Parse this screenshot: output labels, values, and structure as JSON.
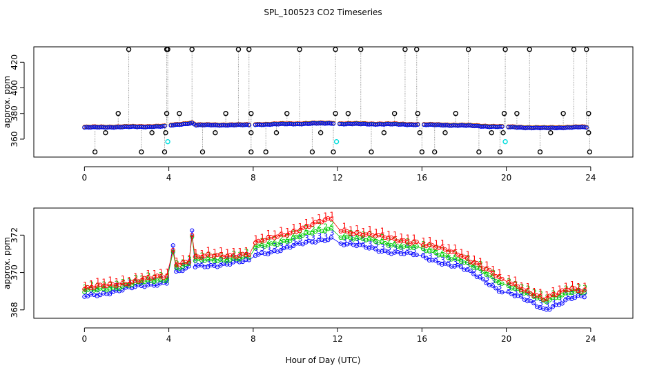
{
  "title": "SPL_100523  CO2 Timeseries",
  "xlabel": "Hour of Day (UTC)",
  "colors": {
    "series_1": "#ff0000",
    "series_2": "#00cc00",
    "series_3": "#0000ff",
    "outlier": "#000000",
    "cyan": "#00dddd",
    "spike": "#888888"
  },
  "chart_data": [
    {
      "type": "scatter",
      "panel": "top",
      "ylabel": "approx. ppm",
      "xlim": [
        -2.4,
        26.0
      ],
      "ylim": [
        346,
        432
      ],
      "xticks": [
        0,
        4,
        8,
        12,
        16,
        20,
        24
      ],
      "yticks": [
        360,
        380,
        400,
        420
      ],
      "baseline_keypoints": [
        [
          0,
          369
        ],
        [
          3.9,
          369.8
        ],
        [
          4.1,
          370.5
        ],
        [
          5.1,
          372.5
        ],
        [
          5.3,
          370.8
        ],
        [
          7.9,
          370.9
        ],
        [
          8.0,
          371.2
        ],
        [
          11.8,
          372.3
        ],
        [
          12.0,
          371.8
        ],
        [
          14.0,
          371.6
        ],
        [
          15.8,
          371.2
        ],
        [
          16.0,
          371.1
        ],
        [
          17.8,
          370.6
        ],
        [
          19.8,
          369.4
        ],
        [
          20.2,
          369.2
        ],
        [
          21.8,
          368.5
        ],
        [
          23.5,
          369.2
        ],
        [
          23.8,
          369.0
        ]
      ],
      "outliers_high_430": [
        2.1,
        3.9,
        3.95,
        5.1,
        7.3,
        7.8,
        10.2,
        11.9,
        13.1,
        15.2,
        15.75,
        18.2,
        19.95,
        21.1,
        23.2,
        23.8
      ],
      "outliers_380": [
        1.6,
        3.9,
        4.5,
        6.7,
        7.9,
        9.6,
        11.9,
        12.5,
        14.7,
        15.8,
        17.6,
        19.9,
        20.5,
        22.7,
        23.9
      ],
      "outliers_365": [
        1.0,
        3.2,
        3.85,
        6.2,
        7.9,
        9.1,
        11.2,
        14.2,
        15.9,
        17.1,
        19.3,
        19.85,
        22.1,
        23.9
      ],
      "outliers_350": [
        0.5,
        2.7,
        3.8,
        5.6,
        7.9,
        8.6,
        10.8,
        11.8,
        13.6,
        16.0,
        16.6,
        18.7,
        19.7,
        21.6,
        23.95
      ],
      "cyan_points": [
        [
          3.95,
          358
        ],
        [
          11.95,
          358
        ],
        [
          19.95,
          358
        ]
      ]
    },
    {
      "type": "scatter",
      "panel": "bottom",
      "ylabel": "approx. ppm",
      "xlim": [
        -2.4,
        26.0
      ],
      "ylim": [
        367.55,
        373.45
      ],
      "xticks": [
        0,
        4,
        8,
        12,
        16,
        20,
        24
      ],
      "yticks": [
        368,
        370,
        372
      ],
      "series": [
        {
          "name": "1",
          "color": "#ff0000",
          "offset": 0.28,
          "spike_peak": 372.0,
          "keypoints": [
            [
              0,
              369.1
            ],
            [
              3.9,
              369.8
            ],
            [
              4.1,
              370.4
            ],
            [
              4.9,
              370.6
            ],
            [
              5.3,
              370.8
            ],
            [
              7.9,
              371.0
            ],
            [
              8.0,
              371.5
            ],
            [
              11.8,
              372.9
            ],
            [
              12.0,
              372.3
            ],
            [
              14.0,
              371.9
            ],
            [
              15.8,
              371.6
            ],
            [
              16.0,
              371.5
            ],
            [
              17.8,
              371.0
            ],
            [
              19.8,
              369.6
            ],
            [
              20.2,
              369.5
            ],
            [
              21.8,
              368.5
            ],
            [
              23.0,
              369.2
            ],
            [
              23.8,
              369.0
            ]
          ]
        },
        {
          "name": "2",
          "color": "#00cc00",
          "offset": 0.12,
          "spike_peak": 371.9,
          "keypoints": [
            [
              0,
              368.95
            ],
            [
              3.9,
              369.65
            ],
            [
              4.1,
              370.2
            ],
            [
              4.9,
              370.4
            ],
            [
              5.3,
              370.6
            ],
            [
              7.9,
              370.8
            ],
            [
              8.0,
              371.25
            ],
            [
              11.8,
              372.4
            ],
            [
              12.0,
              372.0
            ],
            [
              14.0,
              371.6
            ],
            [
              15.8,
              371.3
            ],
            [
              16.0,
              371.2
            ],
            [
              17.8,
              370.7
            ],
            [
              19.8,
              369.4
            ],
            [
              20.2,
              369.3
            ],
            [
              21.8,
              368.4
            ],
            [
              23.0,
              369.0
            ],
            [
              23.8,
              368.9
            ]
          ]
        },
        {
          "name": "3",
          "color": "#0000ff",
          "offset": 0.0,
          "spike_peak": 372.25,
          "keypoints": [
            [
              0,
              368.7
            ],
            [
              3.9,
              369.5
            ],
            [
              4.1,
              369.9
            ],
            [
              4.9,
              370.2
            ],
            [
              5.3,
              370.3
            ],
            [
              7.9,
              370.6
            ],
            [
              8.0,
              370.9
            ],
            [
              11.8,
              371.9
            ],
            [
              12.0,
              371.6
            ],
            [
              14.0,
              371.2
            ],
            [
              15.8,
              370.9
            ],
            [
              16.0,
              370.8
            ],
            [
              17.8,
              370.3
            ],
            [
              19.8,
              369.0
            ],
            [
              20.2,
              368.9
            ],
            [
              21.8,
              368.0
            ],
            [
              23.0,
              368.6
            ],
            [
              23.8,
              368.7
            ]
          ]
        }
      ]
    }
  ]
}
